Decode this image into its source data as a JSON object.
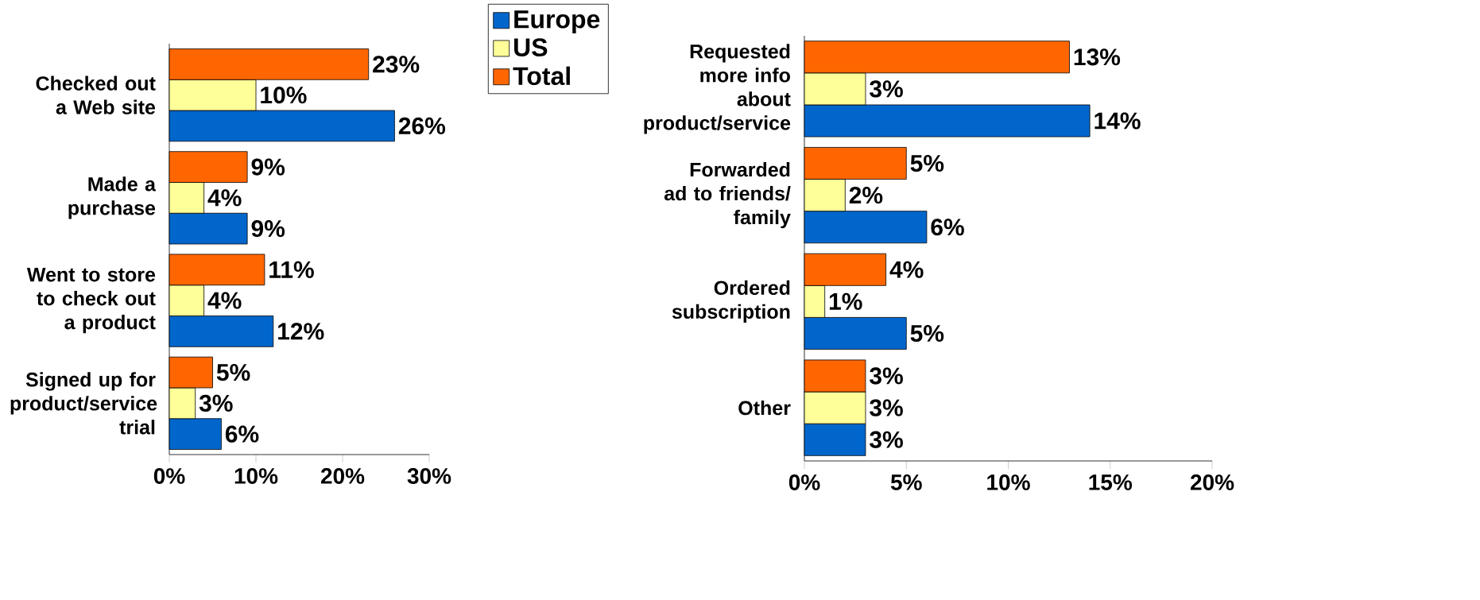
{
  "chart_data": [
    {
      "type": "bar",
      "orientation": "horizontal",
      "categories": [
        "Checked out a Web site",
        "Made a purchase",
        "Went to store to check out a product",
        "Signed up for product/service trial"
      ],
      "series": [
        {
          "name": "Europe",
          "color": "#0066cc",
          "values": [
            26,
            9,
            12,
            6
          ],
          "value_labels": [
            "26%",
            "9%",
            "12%",
            "6%"
          ]
        },
        {
          "name": "US",
          "color": "#ffff99",
          "values": [
            10,
            4,
            4,
            3
          ],
          "value_labels": [
            "10%",
            "4%",
            "4%",
            "3%"
          ]
        },
        {
          "name": "Total",
          "color": "#ff6600",
          "values": [
            23,
            9,
            11,
            5
          ],
          "value_labels": [
            "23%",
            "9%",
            "11%",
            "5%"
          ]
        }
      ],
      "xlim": [
        0,
        30
      ],
      "xticks": [
        {
          "value": 0,
          "label": "0%"
        },
        {
          "value": 10,
          "label": "10%"
        },
        {
          "value": 20,
          "label": "20%"
        },
        {
          "value": 30,
          "label": "30%"
        }
      ],
      "legend": "top"
    },
    {
      "type": "bar",
      "orientation": "horizontal",
      "categories": [
        "Requested more info about product/service",
        "Forwarded ad to friends/ family",
        "Ordered subscription",
        "Other"
      ],
      "series": [
        {
          "color": "#0066cc",
          "values": [
            14,
            6,
            5,
            3
          ],
          "value_labels": [
            "14%",
            "6%",
            "5%",
            "3%"
          ]
        },
        {
          "color": "#ffff99",
          "values": [
            3,
            2,
            1,
            3
          ],
          "value_labels": [
            "3%",
            "2%",
            "1%",
            "3%"
          ]
        },
        {
          "color": "#ff6600",
          "values": [
            13,
            5,
            4,
            3
          ],
          "value_labels": [
            "13%",
            "5%",
            "4%",
            "3%"
          ]
        }
      ],
      "xlim": [
        0,
        20
      ],
      "xticks": [
        {
          "value": 0,
          "label": "0%"
        },
        {
          "value": 5,
          "label": "5%"
        },
        {
          "value": 10,
          "label": "10%"
        },
        {
          "value": 15,
          "label": "15%"
        },
        {
          "value": 20,
          "label": "20%"
        }
      ]
    }
  ]
}
